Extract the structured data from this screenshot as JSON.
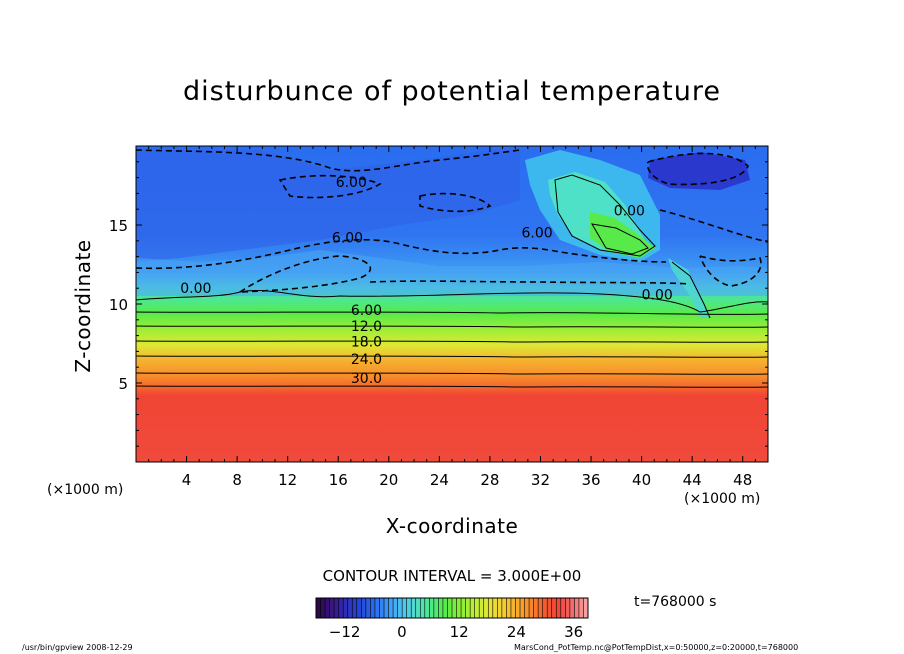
{
  "chart_data": {
    "type": "heatmap",
    "title": "disturbunce of potential temperature",
    "xlabel": "X-coordinate",
    "ylabel": "Z-coordinate",
    "x_unit_left": "(×1000 m)",
    "x_unit_right": "(×1000 m)",
    "xlim": [
      0,
      50
    ],
    "ylim": [
      0,
      20
    ],
    "xticks": [
      4,
      8,
      12,
      16,
      20,
      24,
      28,
      32,
      36,
      40,
      44,
      48
    ],
    "yticks": [
      5,
      10,
      15
    ],
    "contour_interval": "CONTOUR INTERVAL = 3.000E+00",
    "contour_labels": [
      {
        "text": "0.00",
        "x": 3.5,
        "z": 10.7
      },
      {
        "text": "6.00",
        "x": 15.5,
        "z": 13.9
      },
      {
        "text": "6.00",
        "x": 15.8,
        "z": 17.4
      },
      {
        "text": "6.00",
        "x": 30.5,
        "z": 14.2
      },
      {
        "text": "0.00",
        "x": 37.8,
        "z": 15.6
      },
      {
        "text": "0.00",
        "x": 40.0,
        "z": 10.3
      },
      {
        "text": "6.00",
        "x": 17.0,
        "z": 9.3
      },
      {
        "text": "12.0",
        "x": 17.0,
        "z": 8.3
      },
      {
        "text": "18.0",
        "x": 17.0,
        "z": 7.3
      },
      {
        "text": "24.0",
        "x": 17.0,
        "z": 6.2
      },
      {
        "text": "30.0",
        "x": 17.0,
        "z": 5.0
      }
    ],
    "colorbar": {
      "min": -18,
      "max": 39,
      "ticks": [
        -12,
        0,
        12,
        24,
        36
      ],
      "colors": [
        "#2b0a4a",
        "#3a1487",
        "#2f2fb8",
        "#2449d6",
        "#2a6df0",
        "#3d9af5",
        "#4fc4f0",
        "#4fe0c8",
        "#4ee88a",
        "#58ea4b",
        "#88ee38",
        "#b8ef36",
        "#dfe835",
        "#f3d233",
        "#f6b02f",
        "#f78b2c",
        "#f45f2f",
        "#f04535",
        "#f06a6a",
        "#f6a0a0"
      ]
    },
    "time": "t=768000 s",
    "footer_left": "/usr/bin/gpview   2008-12-29",
    "footer_right": "MarsCond_PotTemp.nc@PotTempDist,x=0:50000,z=0:20000,t=768000"
  }
}
